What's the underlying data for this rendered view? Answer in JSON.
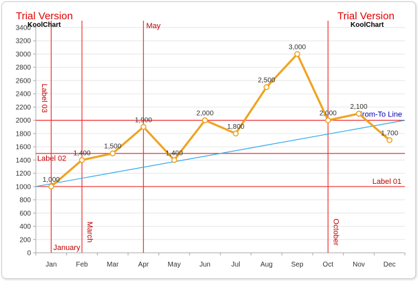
{
  "watermark": {
    "title": "Trial Version",
    "subtitle": "KoolChart"
  },
  "chart_data": {
    "type": "line",
    "categories": [
      "Jan",
      "Feb",
      "Mar",
      "Apr",
      "May",
      "Jun",
      "Jul",
      "Aug",
      "Sep",
      "Oct",
      "Nov",
      "Dec"
    ],
    "values": [
      1000,
      1400,
      1500,
      1900,
      1400,
      2000,
      1800,
      2500,
      3000,
      2000,
      2100,
      1700
    ],
    "data_labels": [
      "1,000",
      "1,400",
      "1,500",
      "1,900",
      "1,400",
      "2,000",
      "1,800",
      "2,500",
      "3,000",
      "2,000",
      "2,100",
      "1,700"
    ],
    "ylim": [
      0,
      3400
    ],
    "yticks": [
      0,
      200,
      400,
      600,
      800,
      1000,
      1200,
      1400,
      1600,
      1800,
      2000,
      2200,
      2400,
      2600,
      2800,
      3000,
      3200,
      3400
    ],
    "grid": true,
    "colors": {
      "line": "#eea320",
      "marker_fill": "#ffffff",
      "reference": "#ee3333",
      "trend": "#33aaee",
      "grid": "#e6e6e6",
      "axis": "#aaaaaa"
    },
    "horizontal_references": [
      {
        "value": 1000,
        "label": "Label 01",
        "label_position": "right"
      },
      {
        "value": 1500,
        "label": "Label 02",
        "label_position": "left"
      },
      {
        "value": 2000,
        "label": "Label 03",
        "label_position": "left-vertical"
      }
    ],
    "vertical_references": [
      {
        "category_position": 0.5,
        "label": "January",
        "label_position": "bottom"
      },
      {
        "category_position": 1.5,
        "label": "March",
        "label_position": "bottom-vertical"
      },
      {
        "category_position": 3.5,
        "label": "May",
        "label_position": "top"
      },
      {
        "category_position": 9.5,
        "label": "October",
        "label_position": "bottom-vertical"
      }
    ],
    "trend_line": {
      "from": {
        "category_position": 0,
        "value": 1000
      },
      "to": {
        "category_position": 12,
        "value": 2000
      },
      "label": "From-To Line"
    }
  }
}
